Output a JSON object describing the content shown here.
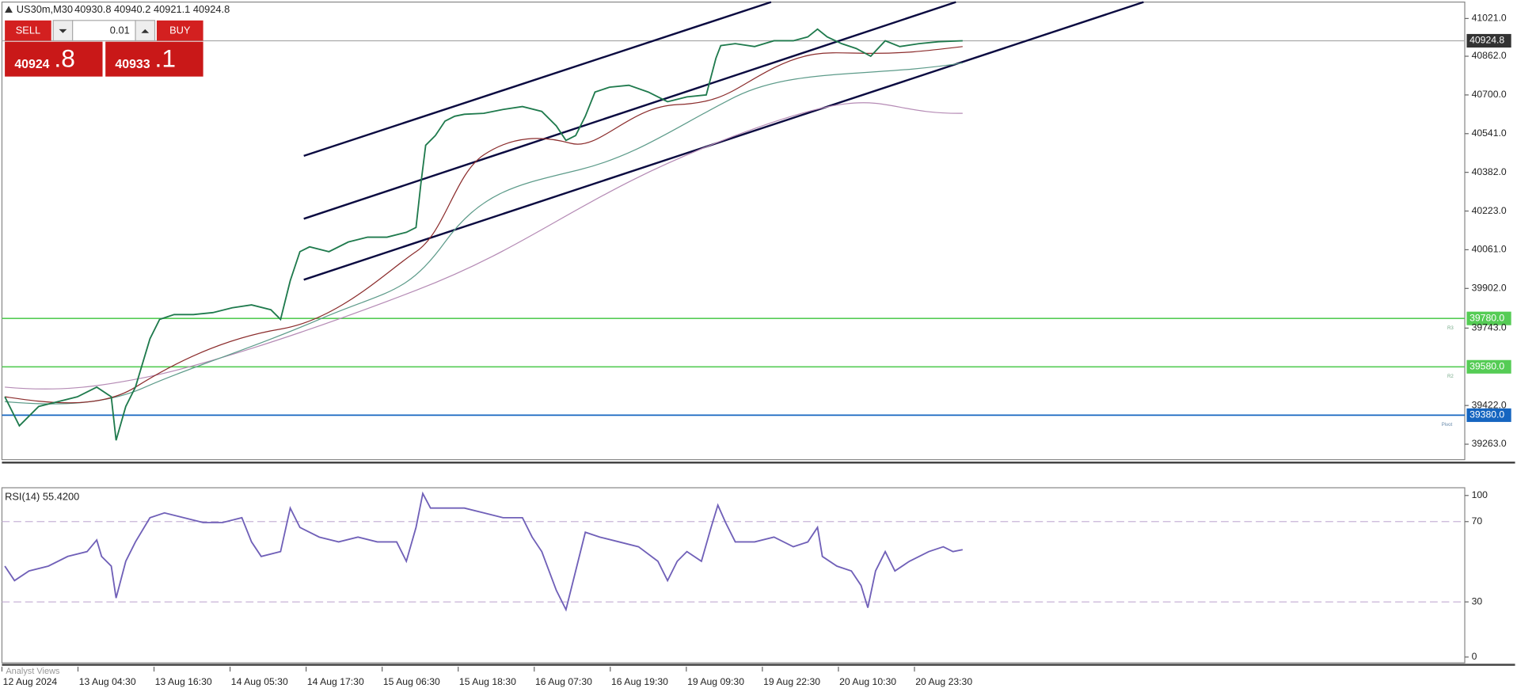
{
  "header": {
    "symbol": "US30m,M30",
    "ohlc": "40930.8 40940.2 40921.1 40924.8"
  },
  "trade_panel": {
    "sell": "SELL",
    "lot": "0.01",
    "buy": "BUY",
    "bid_main": "40924",
    "bid_frac": ".8",
    "ask_main": "40933",
    "ask_frac": ".1"
  },
  "price_axis": {
    "labels": [
      "41021.0",
      "40862.0",
      "40700.0",
      "40541.0",
      "40382.0",
      "40223.0",
      "40061.0",
      "39902.0",
      "39743.0",
      "39422.0",
      "39263.0"
    ],
    "current_price": "40924.8",
    "levels": [
      {
        "price": "39780.0",
        "tag": "R3"
      },
      {
        "price": "39580.0",
        "tag": "R2"
      },
      {
        "price": "39380.0",
        "tag": "Pivot"
      }
    ]
  },
  "rsi": {
    "title": "RSI(14) 55.4200",
    "levels": [
      "100",
      "70",
      "30",
      "0"
    ]
  },
  "time_axis": [
    "12 Aug 2024",
    "13 Aug 04:30",
    "13 Aug 16:30",
    "14 Aug 05:30",
    "14 Aug 17:30",
    "15 Aug 06:30",
    "15 Aug 18:30",
    "16 Aug 07:30",
    "16 Aug 19:30",
    "19 Aug 09:30",
    "19 Aug 22:30",
    "20 Aug 10:30",
    "20 Aug 23:30"
  ],
  "footer": {
    "tab": "Analyst Views"
  }
}
